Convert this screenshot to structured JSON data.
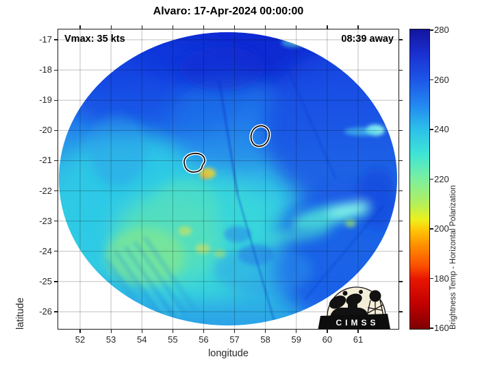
{
  "title": "Alvaro: 17-Apr-2024 00:00:00",
  "annotations": {
    "vmax": "Vmax: 35 kts",
    "time_to_arrival": "08:39 away"
  },
  "axes": {
    "xlabel": "longitude",
    "ylabel": "latitude",
    "xticks": [
      52,
      53,
      54,
      55,
      56,
      57,
      58,
      59,
      60,
      61
    ],
    "yticks": [
      -17,
      -18,
      -19,
      -20,
      -21,
      -22,
      -23,
      -24,
      -25,
      -26
    ]
  },
  "colorbar": {
    "label": "Brightness Temp - Horizontal Polarization",
    "min": 160,
    "max": 280,
    "ticks": [
      280,
      260,
      240,
      220,
      200,
      180,
      160
    ]
  },
  "logo": {
    "text": "CIMSS"
  },
  "chart_data": {
    "type": "heatmap",
    "title": "Alvaro: 17-Apr-2024 00:00:00",
    "xlabel": "longitude",
    "ylabel": "latitude",
    "xlim": [
      51.3,
      62.3
    ],
    "ylim": [
      -26.6,
      -16.6
    ],
    "xticks": [
      52,
      53,
      54,
      55,
      56,
      57,
      58,
      59,
      60,
      61
    ],
    "yticks": [
      -17,
      -18,
      -19,
      -20,
      -21,
      -22,
      -23,
      -24,
      -25,
      -26
    ],
    "grid": true,
    "legend_position": "right colorbar",
    "colorbar": {
      "label": "Brightness Temp - Horizontal Polarization",
      "range_K": [
        160,
        280
      ],
      "ticks": [
        280,
        260,
        240,
        220,
        200,
        180,
        160
      ],
      "colormap": "jet reversed (280 K = dark blue, 240 K = cyan, 220 K = green, 200 K = yellow-orange, 160 K = dark red)"
    },
    "annotations": [
      "Vmax: 35 kts",
      "08:39 away"
    ],
    "swath": {
      "shape": "circular microwave scan footprint on white background",
      "center_lon": 56.8,
      "center_lat": -21.6,
      "radius_deg": 5.2
    },
    "storm_center_contours": [
      {
        "lon": 55.7,
        "lat": -21.0,
        "style": "black contour with white halo"
      },
      {
        "lon": 57.8,
        "lat": -20.2,
        "style": "black contour with white halo"
      }
    ],
    "field_summary": [
      {
        "region": "northern swath, lat -17 to -19.5",
        "tb_K": 264
      },
      {
        "region": "eastern swath, lon 58-61",
        "tb_K": 258
      },
      {
        "region": "west-central swath, lon 52-56, lat -20.5 to -24",
        "tb_K": 240
      },
      {
        "region": "green patch lon 53.5-55.5, lat -22 to -23.5",
        "tb_K": 224
      },
      {
        "region": "warm spot near lon 55.9, lat -21.3 (yellow)",
        "tb_K": 204
      },
      {
        "region": "warm speckles lon 55.5-56.5, lat -23 to -23.5",
        "tb_K": 215
      },
      {
        "region": "bright cyan streak lon 57.5-59.5, lat -23 to -23.5",
        "tb_K": 232
      },
      {
        "region": "bright spot at east edge lon 60.5, lat -20.1",
        "tb_K": 234
      },
      {
        "region": "warm spot at north edge lon 59.9, lat -17.2",
        "tb_K": 210
      },
      {
        "region": "south-central swath bottom, lon 56-58",
        "tb_K": 246
      }
    ]
  }
}
